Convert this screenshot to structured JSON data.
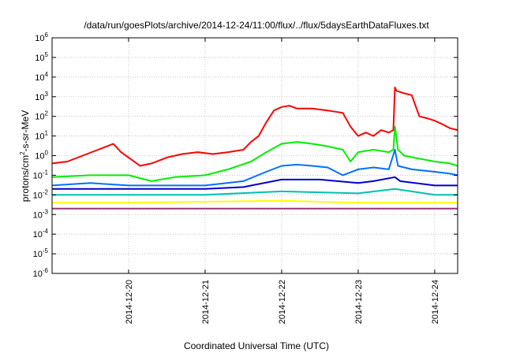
{
  "chart_data": {
    "type": "line",
    "title": "/data/run/goesPlots/archive/2014-12-24/11:00/flux/../flux/5daysEarthDataFluxes.txt",
    "xlabel": "Coordinated Universal Time (UTC)",
    "ylabel_main": "protons/cm",
    "ylabel_sup": "2",
    "ylabel_rest": "-s-sr-MeV",
    "y_scale": "log",
    "ylim": [
      1e-06,
      1000000.0
    ],
    "xlim_days": [
      0,
      5.3
    ],
    "grid": true,
    "legend": "none",
    "y_ticks": [
      {
        "base": "10",
        "exp": "-6",
        "value": 1e-06
      },
      {
        "base": "10",
        "exp": "-5",
        "value": 1e-05
      },
      {
        "base": "10",
        "exp": "-4",
        "value": 0.0001
      },
      {
        "base": "10",
        "exp": "-3",
        "value": 0.001
      },
      {
        "base": "10",
        "exp": "-2",
        "value": 0.01
      },
      {
        "base": "10",
        "exp": "-1",
        "value": 0.1
      },
      {
        "base": "10",
        "exp": "0",
        "value": 1
      },
      {
        "base": "10",
        "exp": "1",
        "value": 10
      },
      {
        "base": "10",
        "exp": "2",
        "value": 100
      },
      {
        "base": "10",
        "exp": "3",
        "value": 1000
      },
      {
        "base": "10",
        "exp": "4",
        "value": 10000
      },
      {
        "base": "10",
        "exp": "5",
        "value": 100000
      },
      {
        "base": "10",
        "exp": "6",
        "value": 1000000
      }
    ],
    "x_ticks": [
      {
        "label": "2014-12-20",
        "day": 1
      },
      {
        "label": "2014-12-21",
        "day": 2
      },
      {
        "label": "2014-12-22",
        "day": 3
      },
      {
        "label": "2014-12-23",
        "day": 4
      },
      {
        "label": "2014-12-24",
        "day": 5
      }
    ],
    "series": [
      {
        "color": "#ff0000",
        "x": [
          0,
          0.2,
          0.4,
          0.6,
          0.8,
          0.9,
          1.0,
          1.15,
          1.3,
          1.5,
          1.7,
          1.9,
          2.1,
          2.3,
          2.5,
          2.6,
          2.7,
          2.8,
          2.9,
          3.0,
          3.1,
          3.2,
          3.4,
          3.6,
          3.8,
          3.9,
          4.0,
          4.1,
          4.2,
          4.3,
          4.4,
          4.46,
          4.48,
          4.5,
          4.6,
          4.7,
          4.8,
          4.9,
          5.0,
          5.1,
          5.2,
          5.3
        ],
        "y": [
          0.4,
          0.5,
          1.0,
          2.0,
          4.0,
          1.5,
          0.8,
          0.3,
          0.4,
          0.8,
          1.2,
          1.5,
          1.2,
          1.5,
          2.0,
          5.0,
          10,
          50,
          200,
          300,
          350,
          250,
          250,
          200,
          150,
          30,
          10,
          15,
          10,
          20,
          15,
          20,
          3000,
          2000,
          1500,
          1200,
          100,
          80,
          60,
          40,
          25,
          20
        ]
      },
      {
        "color": "#00ee00",
        "x": [
          0,
          0.5,
          1.0,
          1.3,
          1.6,
          2.0,
          2.3,
          2.6,
          2.8,
          3.0,
          3.2,
          3.4,
          3.6,
          3.8,
          3.9,
          4.0,
          4.2,
          4.4,
          4.46,
          4.48,
          4.52,
          4.6,
          4.8,
          5.0,
          5.2,
          5.3
        ],
        "y": [
          0.08,
          0.1,
          0.1,
          0.05,
          0.08,
          0.1,
          0.2,
          0.5,
          1.5,
          4.0,
          5.0,
          4.0,
          3.0,
          2.0,
          0.5,
          1.5,
          2.0,
          1.5,
          2.0,
          30,
          2.0,
          1.0,
          0.7,
          0.5,
          0.4,
          0.3
        ]
      },
      {
        "color": "#0070ff",
        "x": [
          0,
          0.5,
          1.0,
          1.5,
          2.0,
          2.5,
          2.8,
          3.0,
          3.2,
          3.4,
          3.6,
          3.8,
          4.0,
          4.2,
          4.4,
          4.48,
          4.52,
          4.7,
          5.0,
          5.2,
          5.3
        ],
        "y": [
          0.03,
          0.04,
          0.03,
          0.03,
          0.03,
          0.05,
          0.15,
          0.3,
          0.35,
          0.3,
          0.25,
          0.1,
          0.2,
          0.25,
          0.2,
          2.0,
          0.3,
          0.2,
          0.15,
          0.12,
          0.1
        ]
      },
      {
        "color": "#0000cc",
        "x": [
          0,
          0.5,
          1.0,
          1.5,
          2.0,
          2.5,
          3.0,
          3.5,
          4.0,
          4.2,
          4.48,
          4.55,
          5.0,
          5.3
        ],
        "y": [
          0.02,
          0.02,
          0.02,
          0.02,
          0.02,
          0.025,
          0.06,
          0.06,
          0.04,
          0.05,
          0.08,
          0.05,
          0.03,
          0.03
        ]
      },
      {
        "color": "#00c0b0",
        "x": [
          0,
          1.0,
          2.0,
          3.0,
          4.0,
          4.48,
          5.0,
          5.3
        ],
        "y": [
          0.01,
          0.01,
          0.01,
          0.015,
          0.012,
          0.02,
          0.01,
          0.01
        ]
      },
      {
        "color": "#ffff00",
        "x": [
          0,
          1.0,
          2.0,
          3.0,
          4.0,
          5.0,
          5.3
        ],
        "y": [
          0.004,
          0.004,
          0.0045,
          0.005,
          0.004,
          0.004,
          0.004
        ]
      },
      {
        "color": "#993377",
        "x": [
          0,
          1.0,
          2.0,
          3.0,
          4.0,
          5.0,
          5.3
        ],
        "y": [
          0.002,
          0.002,
          0.002,
          0.002,
          0.002,
          0.002,
          0.002
        ]
      }
    ]
  }
}
